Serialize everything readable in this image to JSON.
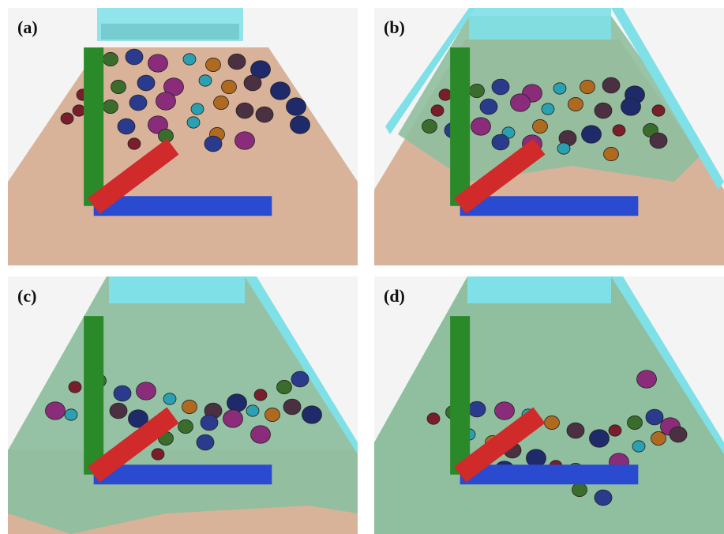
{
  "panels": [
    {
      "id": "a",
      "label": "(a)",
      "water": "none"
    },
    {
      "id": "b",
      "label": "(b)",
      "water": "partial"
    },
    {
      "id": "c",
      "label": "(c)",
      "water": "most"
    },
    {
      "id": "d",
      "label": "(d)",
      "water": "full"
    }
  ],
  "colors": {
    "sand": "#d8b39a",
    "water": "#8fbf9f",
    "water_edge": "#7fe0e8",
    "background": "#f4f4f4",
    "stone_palette": [
      "#7a1e2b",
      "#3a6d2c",
      "#2a3a8c",
      "#8a2c7a",
      "#2aa0b0",
      "#b06a20",
      "#4a3040",
      "#1e2a6a"
    ]
  },
  "axes_icon": "xyz-axes-icon"
}
